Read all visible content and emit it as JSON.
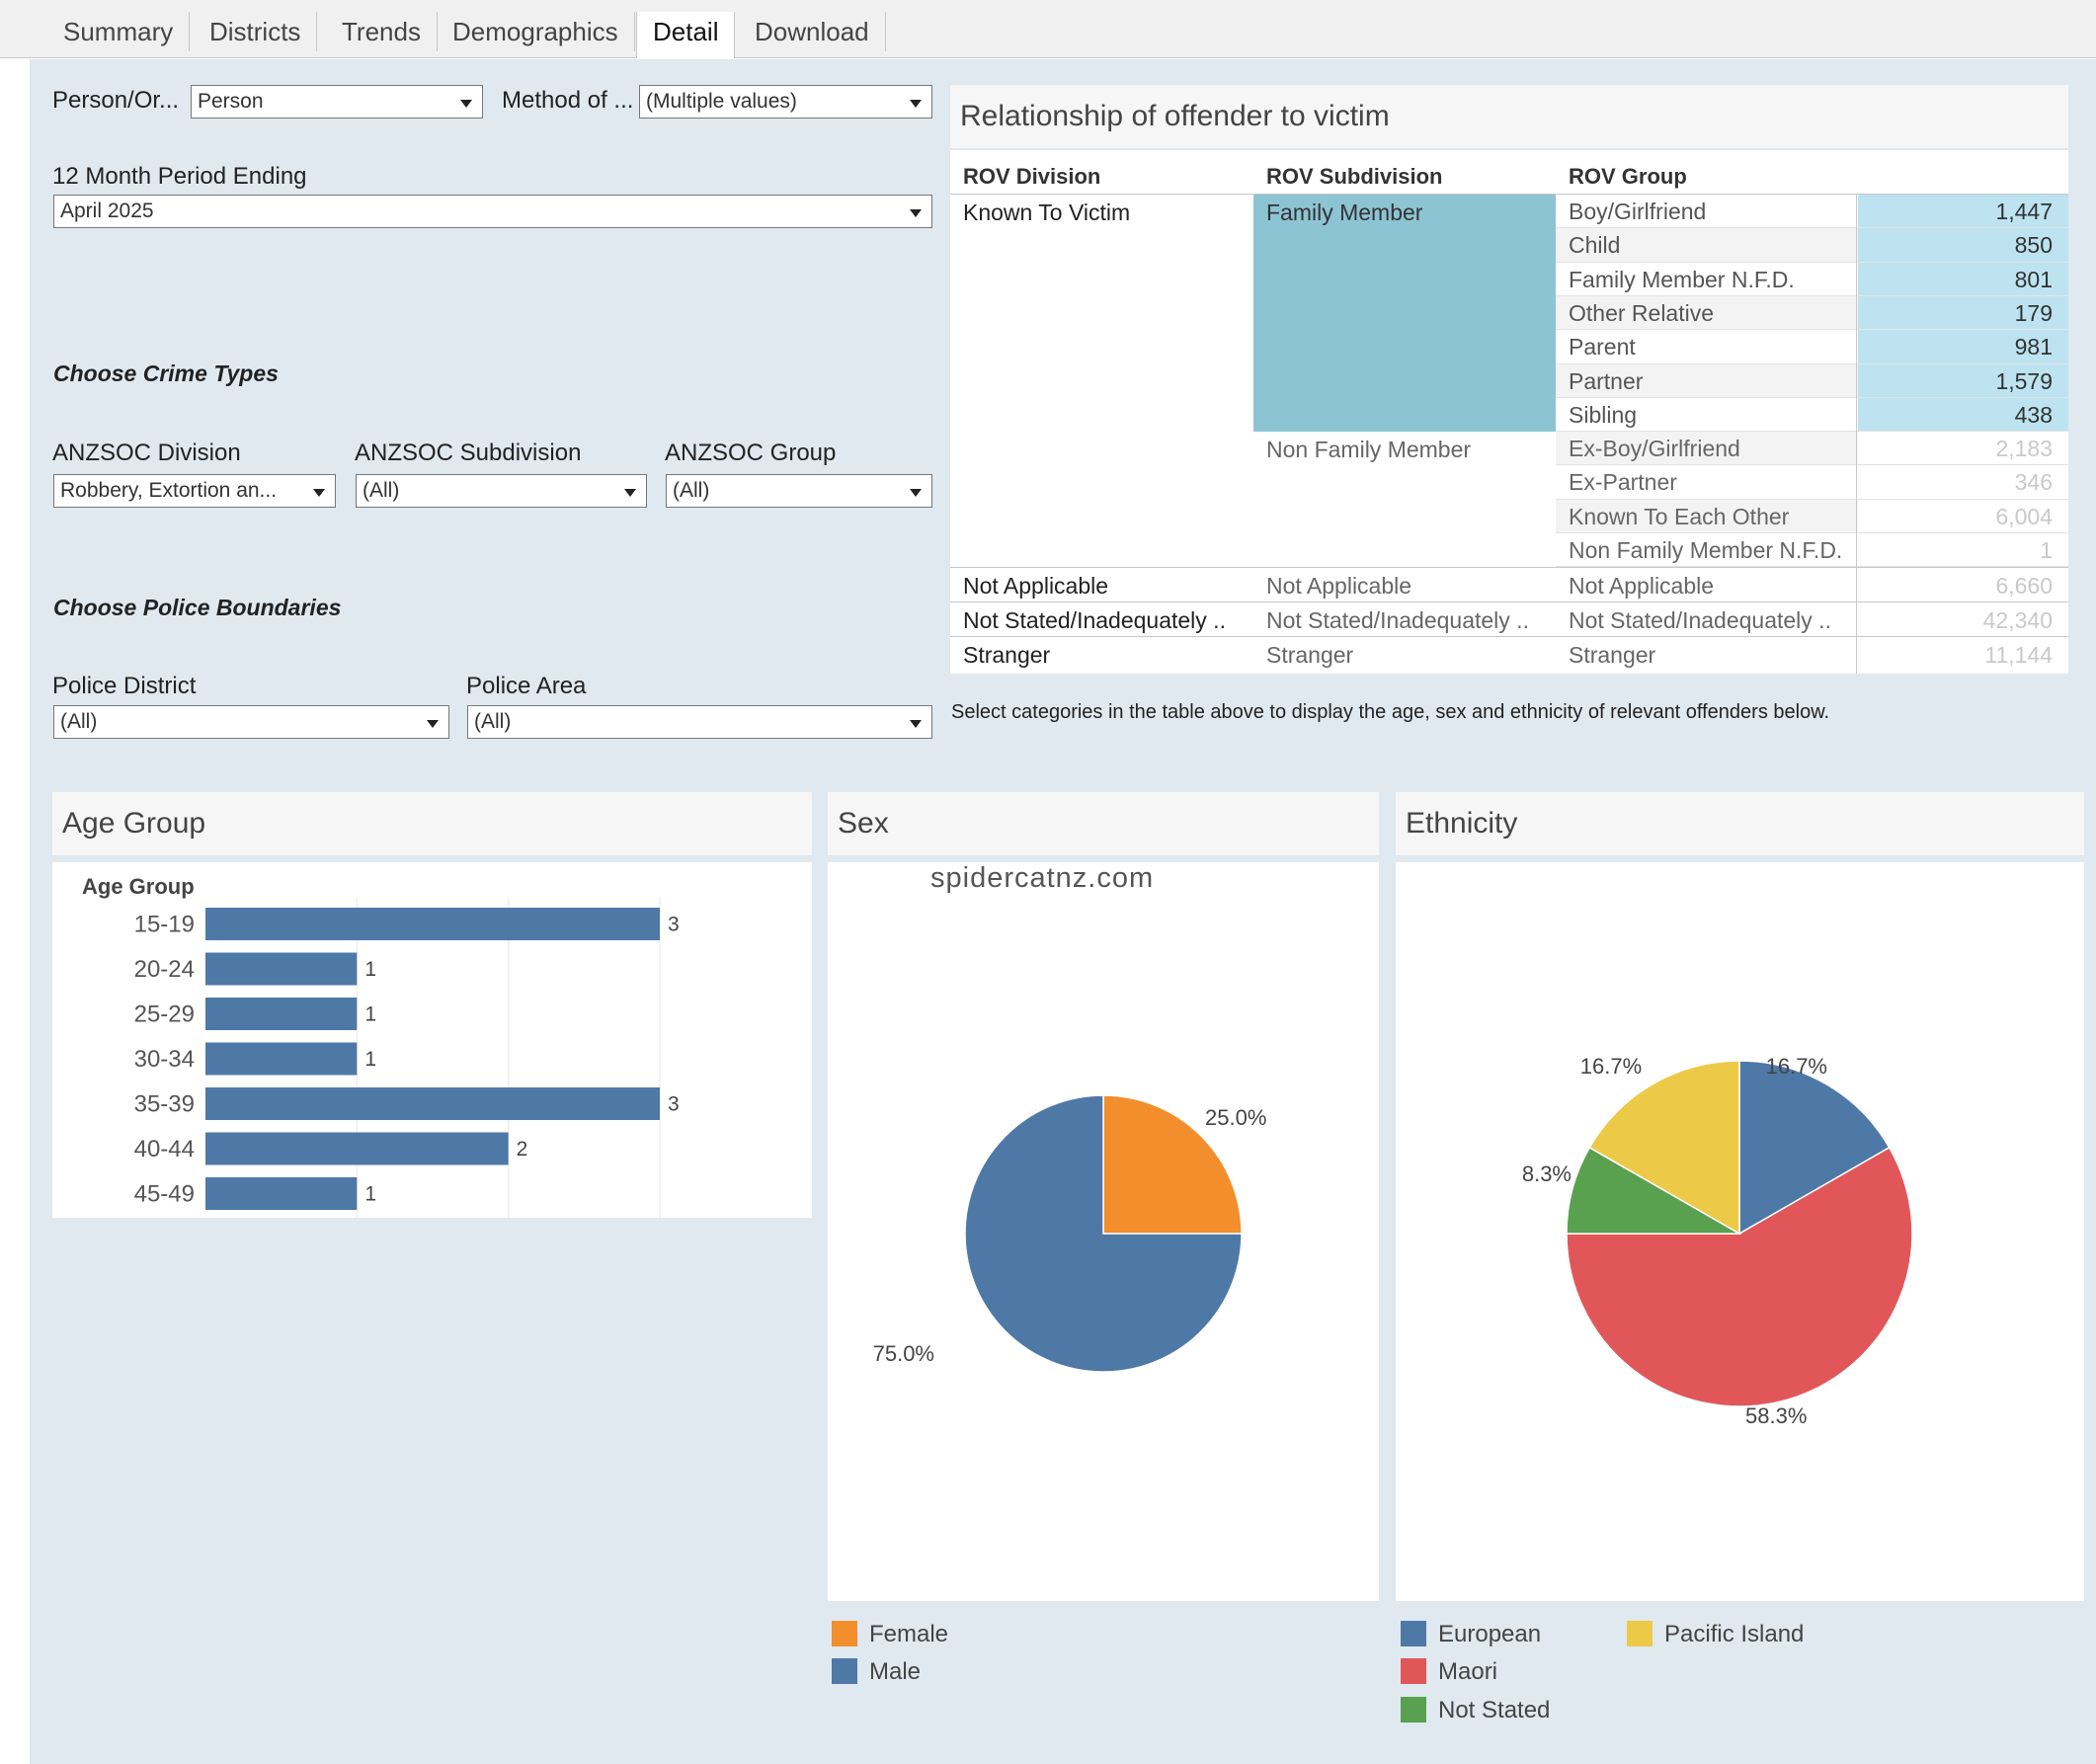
{
  "tabs": [
    "Summary",
    "Districts",
    "Trends",
    "Demographics",
    "Detail",
    "Download"
  ],
  "active_tab": "Detail",
  "filters": {
    "person_label": "Person/Or...",
    "person_value": "Person",
    "method_label": "Method of ...",
    "method_value": "(Multiple values)",
    "period_label": "12 Month Period Ending",
    "period_value": "April 2025",
    "crime_heading": "Choose Crime Types",
    "anzsoc_division_label": "ANZSOC Division",
    "anzsoc_division_value": "Robbery, Extortion an...",
    "anzsoc_subdivision_label": "ANZSOC Subdivision",
    "anzsoc_subdivision_value": "(All)",
    "anzsoc_group_label": "ANZSOC Group",
    "anzsoc_group_value": "(All)",
    "police_heading": "Choose Police Boundaries",
    "police_district_label": "Police District",
    "police_district_value": "(All)",
    "police_area_label": "Police Area",
    "police_area_value": "(All)"
  },
  "rov": {
    "title": "Relationship of offender to victim",
    "headers": [
      "ROV Division",
      "ROV Subdivision",
      "ROV Group"
    ],
    "division_known": "Known To Victim",
    "subdivision_family": "Family Member",
    "subdivision_nonfamily": "Non Family Member",
    "rows": [
      {
        "group": "Boy/Girlfriend",
        "value": "1,447",
        "selected": true
      },
      {
        "group": "Child",
        "value": "850",
        "selected": true
      },
      {
        "group": "Family Member N.F.D.",
        "value": "801",
        "selected": true
      },
      {
        "group": "Other Relative",
        "value": "179",
        "selected": true
      },
      {
        "group": "Parent",
        "value": "981",
        "selected": true
      },
      {
        "group": "Partner",
        "value": "1,579",
        "selected": true
      },
      {
        "group": "Sibling",
        "value": "438",
        "selected": true
      },
      {
        "group": "Ex-Boy/Girlfriend",
        "value": "2,183",
        "selected": false
      },
      {
        "group": "Ex-Partner",
        "value": "346",
        "selected": false
      },
      {
        "group": "Known To Each Other",
        "value": "6,004",
        "selected": false
      },
      {
        "group": "Non Family Member N.F.D.",
        "value": "1",
        "selected": false
      }
    ],
    "other_rows": [
      {
        "division": "Not Applicable",
        "subdivision": "Not Applicable",
        "group": "Not Applicable",
        "value": "6,660"
      },
      {
        "division": "Not Stated/Inadequately ..",
        "subdivision": "Not Stated/Inadequately ..",
        "group": "Not Stated/Inadequately ..",
        "value": "42,340"
      },
      {
        "division": "Stranger",
        "subdivision": "Stranger",
        "group": "Stranger",
        "value": "11,144"
      }
    ],
    "note": "Select categories in the  table above to display the age, sex and ethnicity of relevant offenders below.",
    "selected_color": "#8cc4d4",
    "selected_value_color": "#bde3f0"
  },
  "age_panel": {
    "title": "Age Group"
  },
  "sex_panel": {
    "title": "Sex",
    "watermark": "spidercatnz.com"
  },
  "ethnicity_panel": {
    "title": "Ethnicity"
  },
  "chart_data": [
    {
      "type": "bar",
      "orientation": "horizontal",
      "ylabel": "Age Group",
      "categories": [
        "15-19",
        "20-24",
        "25-29",
        "30-34",
        "35-39",
        "40-44",
        "45-49"
      ],
      "values": [
        3,
        1,
        1,
        1,
        3,
        2,
        1
      ],
      "xlim": [
        0,
        3
      ],
      "color": "#4e79a7"
    },
    {
      "type": "pie",
      "slices": [
        {
          "name": "Female",
          "value": 25.0,
          "label": "25.0%",
          "color": "#f28e2b"
        },
        {
          "name": "Male",
          "value": 75.0,
          "label": "75.0%",
          "color": "#4e79a7"
        }
      ],
      "legend": "bottom-left"
    },
    {
      "type": "pie",
      "slices": [
        {
          "name": "European",
          "value": 16.7,
          "label": "16.7%",
          "color": "#4e79a7"
        },
        {
          "name": "Maori",
          "value": 58.3,
          "label": "58.3%",
          "color": "#e15759"
        },
        {
          "name": "Not Stated",
          "value": 8.3,
          "label": "8.3%",
          "color": "#59a14f"
        },
        {
          "name": "Pacific Island",
          "value": 16.7,
          "label": "16.7%",
          "color": "#edc948"
        }
      ],
      "legend": "bottom-left"
    }
  ]
}
